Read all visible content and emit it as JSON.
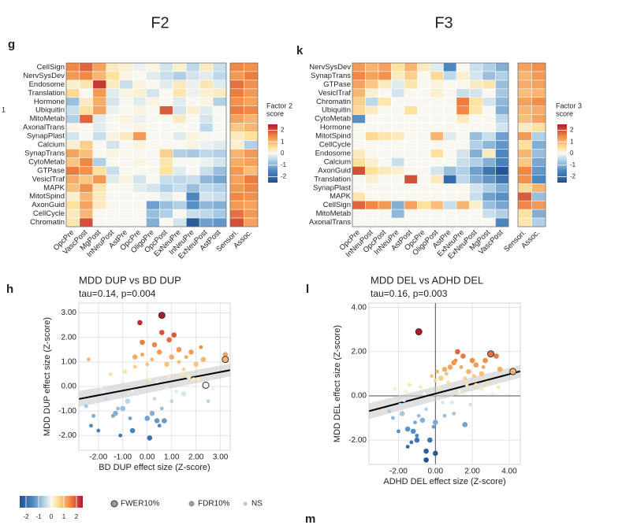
{
  "margin_text": "1",
  "next_panel": "m",
  "legend": {
    "colorbar_ticks": [
      -2,
      -1,
      0,
      1,
      2
    ],
    "clim": [
      -2.5,
      2.5
    ],
    "entries": [
      "FWER10%",
      "FDR10%",
      "NS"
    ]
  },
  "chart_data": [
    {
      "type": "heatmap",
      "header": "F2",
      "panel": "g",
      "clim": [
        -2.5,
        2.5
      ],
      "colorbar_title": [
        "Factor 2",
        "score"
      ],
      "colorbar_ticks": [
        -2,
        -1,
        0,
        1,
        2
      ],
      "rows": [
        "CellSign",
        "NervSysDev",
        "Endosome",
        "Translation",
        "Hormone",
        "Ubiquitin",
        "MitoMetab",
        "AxonalTrans",
        "SynapPlast",
        "Calcium",
        "SynapTrans",
        "CytoMetab",
        "GTPase",
        "VesiclTraf",
        "MAPK",
        "MitotSpind",
        "AxonGuid",
        "CellCycle",
        "Chromatin"
      ],
      "columns": [
        "OpcPre",
        "VascPost",
        "MgPost",
        "InNeuPost",
        "AstPre",
        "OpcPre",
        "OligoPre",
        "OpcPost",
        "ExNeuPre",
        "InNeuPre",
        "ExNeuPost",
        "AstPost"
      ],
      "side_columns": [
        "Sensori.",
        "Assoc."
      ],
      "values": [
        [
          1.5,
          1.8,
          1.2,
          0.3,
          0.2,
          -0.1,
          0.1,
          -0.3,
          0.2,
          -0.5,
          0.3,
          -0.4
        ],
        [
          1.3,
          1.5,
          1.0,
          0.5,
          0.1,
          0.0,
          -0.2,
          -0.4,
          -0.6,
          -0.3,
          -0.2,
          -0.5
        ],
        [
          0.2,
          0.4,
          2.2,
          0.3,
          -0.4,
          0.1,
          0.0,
          -0.2,
          0.3,
          -0.1,
          0.4,
          -0.2
        ],
        [
          0.6,
          0.0,
          1.3,
          -0.2,
          0.1,
          0.2,
          -0.3,
          0.0,
          0.4,
          -0.1,
          0.2,
          0.3
        ],
        [
          -0.8,
          0.3,
          1.1,
          -0.3,
          0.0,
          -0.2,
          0.1,
          0.0,
          -0.2,
          0.0,
          0.1,
          -0.6
        ],
        [
          -0.4,
          0.5,
          1.2,
          -0.1,
          0.0,
          0.1,
          0.0,
          1.9,
          -0.3,
          0.2,
          -0.2,
          0.0
        ],
        [
          -0.6,
          1.8,
          -0.2,
          0.0,
          0.1,
          -0.1,
          0.0,
          0.0,
          0.3,
          0.0,
          -0.3,
          0.0
        ],
        [
          0.1,
          0.0,
          -0.2,
          0.0,
          0.0,
          0.1,
          0.0,
          0.0,
          0.0,
          0.0,
          -0.5,
          0.0
        ],
        [
          -0.3,
          0.0,
          -0.4,
          0.1,
          0.3,
          1.3,
          0.0,
          0.0,
          -0.2,
          0.1,
          0.0,
          0.0
        ],
        [
          0.2,
          0.7,
          0.0,
          -0.3,
          0.0,
          0.1,
          0.0,
          0.0,
          0.0,
          0.1,
          -0.1,
          -0.2
        ],
        [
          1.2,
          0.9,
          0.0,
          0.1,
          0.0,
          0.0,
          0.0,
          0.7,
          -0.6,
          -0.7,
          -0.5,
          -0.6
        ],
        [
          0.8,
          1.5,
          -0.6,
          0.0,
          0.0,
          0.1,
          0.0,
          0.4,
          0.0,
          0.0,
          -0.1,
          -0.3
        ],
        [
          1.6,
          1.4,
          0.5,
          -0.4,
          0.0,
          0.0,
          0.0,
          0.5,
          -0.2,
          0.0,
          -0.4,
          -0.8
        ],
        [
          1.1,
          0.8,
          1.3,
          -0.2,
          0.1,
          -0.3,
          0.0,
          -0.4,
          -0.5,
          -0.4,
          -0.9,
          -1.1
        ],
        [
          0.9,
          1.4,
          0.4,
          0.0,
          0.0,
          -0.2,
          -0.3,
          -0.6,
          -0.4,
          -0.8,
          -0.5,
          -0.6
        ],
        [
          0.2,
          1.0,
          0.3,
          0.0,
          0.0,
          0.0,
          0.0,
          -0.2,
          0.0,
          -1.5,
          -0.3,
          -0.4
        ],
        [
          0.5,
          1.2,
          0.3,
          0.0,
          0.0,
          0.0,
          -1.2,
          -0.8,
          -0.6,
          -1.4,
          -0.9,
          -1.0
        ],
        [
          0.3,
          1.0,
          0.0,
          0.0,
          0.0,
          0.0,
          -0.8,
          -0.6,
          0.0,
          -0.4,
          -0.5,
          -0.7
        ],
        [
          0.4,
          2.0,
          0.0,
          0.0,
          0.0,
          0.0,
          -1.0,
          0.0,
          -0.3,
          -2.3,
          -1.2,
          -1.3
        ]
      ],
      "side_values": [
        [
          1.5,
          1.4
        ],
        [
          1.3,
          1.6
        ],
        [
          1.7,
          1.4
        ],
        [
          1.6,
          1.3
        ],
        [
          1.4,
          1.2
        ],
        [
          1.6,
          1.5
        ],
        [
          1.2,
          1.0
        ],
        [
          0.8,
          1.0
        ],
        [
          0.3,
          0.5
        ],
        [
          0.2,
          -0.6
        ],
        [
          1.0,
          1.3
        ],
        [
          1.1,
          1.2
        ],
        [
          1.3,
          0.9
        ],
        [
          1.2,
          1.6
        ],
        [
          1.3,
          1.5
        ],
        [
          1.5,
          1.4
        ],
        [
          1.3,
          1.2
        ],
        [
          1.7,
          1.3
        ],
        [
          2.0,
          1.2
        ]
      ]
    },
    {
      "type": "heatmap",
      "header": "F3",
      "panel": "k",
      "clim": [
        -2.5,
        2.5
      ],
      "colorbar_title": [
        "Factor 3",
        "score"
      ],
      "colorbar_ticks": [
        -2,
        -1,
        0,
        1,
        2
      ],
      "rows": [
        "NervSysDev",
        "SynapTrans",
        "GTPase",
        "VesiclTraf",
        "Chromatin",
        "Ubiquitin",
        "CytoMetab",
        "Hormone",
        "MitotSpind",
        "CellCycle",
        "Endosome",
        "Calcium",
        "AxonGuid",
        "Translation",
        "SynapPlast",
        "MAPK",
        "CellSign",
        "MitoMetab",
        "AxonalTrans"
      ],
      "columns": [
        "OpcPre",
        "InNeuPost",
        "OpcPost",
        "InNeuPre",
        "AstPost",
        "OpcPre",
        "OligoPost",
        "AstPre",
        "ExNeuPre",
        "ExNeuPost",
        "MgPost",
        "VascPost"
      ],
      "side_columns": [
        "Sensori.",
        "Assoc."
      ],
      "values": [
        [
          1.3,
          1.0,
          1.2,
          0.5,
          1.0,
          0.3,
          -0.2,
          -1.5,
          0.0,
          -0.4,
          -0.6,
          -1.0
        ],
        [
          1.5,
          1.2,
          1.4,
          0.3,
          0.7,
          0.0,
          0.6,
          -0.5,
          0.2,
          -0.3,
          -0.8,
          -0.6
        ],
        [
          1.2,
          0.8,
          0.3,
          -0.2,
          0.4,
          0.0,
          0.1,
          0.0,
          0.0,
          0.3,
          0.4,
          -0.8
        ],
        [
          1.0,
          0.2,
          0.0,
          -0.3,
          0.0,
          0.0,
          0.2,
          0.0,
          -0.4,
          -0.3,
          0.0,
          -0.7
        ],
        [
          0.7,
          -0.5,
          0.4,
          0.0,
          0.0,
          0.0,
          0.0,
          0.0,
          1.6,
          0.5,
          -0.3,
          -0.9
        ],
        [
          0.6,
          0.3,
          0.0,
          0.0,
          0.5,
          0.0,
          0.0,
          0.0,
          1.5,
          0.4,
          0.0,
          -1.0
        ],
        [
          -1.4,
          0.0,
          0.0,
          0.0,
          0.0,
          0.0,
          0.0,
          0.0,
          0.3,
          0.0,
          0.0,
          -0.5
        ],
        [
          0.0,
          0.0,
          0.0,
          0.0,
          0.0,
          0.0,
          0.0,
          0.0,
          0.0,
          0.0,
          0.0,
          -0.3
        ],
        [
          0.0,
          0.6,
          0.4,
          0.3,
          0.0,
          0.0,
          1.0,
          -0.2,
          0.0,
          -0.8,
          -0.4,
          -1.2
        ],
        [
          0.0,
          0.0,
          0.0,
          0.0,
          0.0,
          0.0,
          0.0,
          0.0,
          0.0,
          -0.6,
          -0.9,
          -1.3
        ],
        [
          0.3,
          0.0,
          0.0,
          0.0,
          0.0,
          0.0,
          0.5,
          0.0,
          -0.3,
          -1.0,
          0.3,
          -1.5
        ],
        [
          0.5,
          0.2,
          0.0,
          -0.4,
          0.0,
          0.0,
          0.0,
          0.0,
          -0.4,
          -0.6,
          -1.0,
          -1.6
        ],
        [
          2.0,
          0.5,
          0.3,
          0.2,
          0.0,
          0.0,
          -0.3,
          -0.8,
          -0.6,
          -1.2,
          -1.8,
          -2.4
        ],
        [
          0.0,
          0.2,
          0.0,
          0.0,
          2.0,
          0.0,
          0.3,
          -2.0,
          -0.5,
          -1.0,
          -1.3,
          -1.8
        ],
        [
          0.0,
          0.0,
          0.0,
          0.0,
          0.0,
          0.0,
          0.0,
          0.0,
          0.0,
          -0.3,
          -0.6,
          -1.0
        ],
        [
          0.4,
          0.0,
          0.0,
          0.0,
          0.0,
          0.0,
          0.0,
          0.0,
          0.0,
          -0.4,
          -1.2,
          -1.4
        ],
        [
          1.8,
          1.5,
          1.3,
          -1.0,
          1.2,
          0.5,
          0.9,
          -0.4,
          1.0,
          0.2,
          -0.8,
          -1.1
        ],
        [
          0.0,
          0.0,
          0.0,
          -0.9,
          0.0,
          0.0,
          0.0,
          0.0,
          0.0,
          0.0,
          -0.4,
          -0.6
        ],
        [
          0.0,
          0.0,
          0.0,
          0.0,
          0.0,
          0.0,
          0.0,
          0.0,
          0.0,
          0.0,
          0.0,
          -1.5
        ]
      ],
      "side_values": [
        [
          1.2,
          1.4
        ],
        [
          1.0,
          1.3
        ],
        [
          1.1,
          1.2
        ],
        [
          0.9,
          1.0
        ],
        [
          1.2,
          1.4
        ],
        [
          1.0,
          1.1
        ],
        [
          0.9,
          1.2
        ],
        [
          0.3,
          0.5
        ],
        [
          1.3,
          -0.6
        ],
        [
          0.5,
          -1.0
        ],
        [
          1.0,
          -0.8
        ],
        [
          0.8,
          -1.1
        ],
        [
          1.5,
          -1.3
        ],
        [
          1.4,
          -1.5
        ],
        [
          0.6,
          1.0
        ],
        [
          1.9,
          -0.8
        ],
        [
          1.5,
          1.3
        ],
        [
          0.5,
          -1.0
        ],
        [
          0.4,
          -0.6
        ]
      ]
    },
    {
      "type": "scatter",
      "panel": "h",
      "title": "MDD DUP vs BD DUP",
      "subtitle": "tau=0.14, p=0.004",
      "xlabel": "BD DUP effect size (Z-score)",
      "ylabel": "MDD DUP effect size (Z-score)",
      "xlim": [
        -2.8,
        3.4
      ],
      "ylim": [
        -2.6,
        3.4
      ],
      "grid": true,
      "zero_lines": false,
      "xticks": [
        {
          "value": -2,
          "label": "-2.00"
        },
        {
          "value": -1,
          "label": "-1.00"
        },
        {
          "value": 0,
          "label": "0.00"
        },
        {
          "value": 1,
          "label": "1.00"
        },
        {
          "value": 2,
          "label": "2.00"
        },
        {
          "value": 3,
          "label": "3.00"
        }
      ],
      "yticks": [
        {
          "value": -2,
          "label": "-2.00"
        },
        {
          "value": -1,
          "label": "-1.00"
        },
        {
          "value": 0,
          "label": "0.00"
        },
        {
          "value": 1,
          "label": "1.00"
        },
        {
          "value": 2,
          "label": "2.00"
        },
        {
          "value": 3,
          "label": "3.00"
        }
      ],
      "fit": {
        "intercept": 0.02,
        "slope": 0.19
      },
      "series": [
        {
          "x": [
            0.6,
            2.4,
            3.2
          ],
          "y": [
            2.9,
            0.05,
            1.1
          ]
        },
        {
          "x": [
            -0.2,
            0.3,
            0.6,
            1.0,
            1.3,
            -0.5,
            0.8,
            1.8,
            2.3,
            -1.0,
            0.0,
            0.4,
            1.5,
            -0.8,
            0.2,
            0.9,
            1.1,
            -0.3,
            0.5,
            1.7,
            -1.3,
            -0.6,
            0.1,
            0.7,
            2.0,
            3.2
          ],
          "y": [
            1.8,
            1.7,
            2.2,
            1.2,
            1.5,
            1.2,
            0.9,
            1.4,
            1.1,
            -0.9,
            -1.3,
            -1.4,
            -0.3,
            -0.6,
            -1.1,
            1.9,
            2.1,
            2.6,
            1.4,
            0.4,
            -1.1,
            -1.8,
            -2.1,
            -1.4,
            0.9,
            1.3
          ]
        },
        {
          "x": [
            -2.5,
            -2.3,
            -2.0,
            -1.8,
            -1.5,
            -1.2,
            -1.0,
            -0.7,
            -0.5,
            -0.2,
            0.1,
            0.3,
            0.6,
            0.9,
            1.2,
            1.5,
            1.8,
            2.1,
            2.5,
            -2.4,
            -1.7,
            -1.4,
            -0.9,
            -0.4,
            0.0,
            0.4,
            0.8,
            1.3,
            1.9,
            2.7,
            -1.1,
            -0.6,
            0.2,
            1.0,
            1.6,
            -2.2,
            -1.9,
            0.5,
            1.4,
            2.2
          ],
          "y": [
            -0.8,
            -1.6,
            -1.8,
            -0.2,
            0.5,
            -0.9,
            0.2,
            -1.3,
            0.8,
            1.3,
            0.3,
            -0.5,
            -0.9,
            0.4,
            -0.2,
            0.7,
            0.0,
            0.3,
            -0.6,
            1.1,
            -0.5,
            -1.2,
            0.6,
            -0.3,
            0.9,
            0.2,
            -0.1,
            1.0,
            0.3,
            -0.1,
            -2.0,
            -0.2,
            1.1,
            -0.6,
            1.2,
            -1.2,
            0.0,
            -1.6,
            0.5,
            1.6
          ]
        }
      ]
    },
    {
      "type": "scatter",
      "panel": "l",
      "title": "MDD DEL vs ADHD DEL",
      "subtitle": "tau=0.16, p=0.003",
      "xlabel": "ADHD DEL effect size (Z-score)",
      "ylabel": "MDD DEL effect size (Z-score)",
      "xlim": [
        -3.6,
        4.6
      ],
      "ylim": [
        -3.1,
        4.2
      ],
      "grid": true,
      "zero_lines": true,
      "xticks": [
        {
          "value": -2,
          "label": "-2.00"
        },
        {
          "value": 0,
          "label": "0.00"
        },
        {
          "value": 2,
          "label": "2.00"
        },
        {
          "value": 4,
          "label": "4.00"
        }
      ],
      "yticks": [
        {
          "value": -2,
          "label": "-2.00"
        },
        {
          "value": 0,
          "label": "0.00"
        },
        {
          "value": 2,
          "label": "2.00"
        },
        {
          "value": 4,
          "label": "4.00"
        }
      ],
      "fit": {
        "intercept": 0.1,
        "slope": 0.22
      },
      "series": [
        {
          "x": [
            -0.9,
            3.0,
            4.2
          ],
          "y": [
            2.9,
            1.9,
            1.1
          ]
        },
        {
          "x": [
            -1.5,
            -1.0,
            -0.5,
            0.0,
            0.5,
            1.0,
            1.5,
            2.0,
            2.5,
            3.3,
            3.5,
            -1.8,
            -1.2,
            -0.7,
            -0.3,
            0.3,
            0.8,
            1.2,
            1.8,
            2.2,
            2.7,
            -0.5,
            0.0,
            1.6
          ],
          "y": [
            -1.5,
            -2.0,
            -2.5,
            -1.2,
            1.2,
            1.5,
            1.8,
            1.6,
            1.0,
            1.8,
            1.2,
            -0.8,
            -1.6,
            -1.1,
            -2.0,
            0.8,
            1.3,
            2.0,
            1.1,
            1.4,
            1.6,
            -2.9,
            -2.6,
            -1.3
          ]
        },
        {
          "x": [
            -2.5,
            -2.2,
            -2.0,
            -1.7,
            -1.4,
            -1.1,
            -0.8,
            -0.5,
            -0.2,
            0.1,
            0.4,
            0.7,
            1.0,
            1.3,
            1.6,
            1.9,
            2.2,
            2.5,
            2.8,
            3.1,
            -2.3,
            -1.9,
            -1.6,
            -1.3,
            -0.9,
            -0.6,
            -0.1,
            0.2,
            0.6,
            0.9,
            1.4,
            1.7,
            2.1,
            2.6,
            3.4,
            -1.5,
            -1.0,
            0.0,
            0.5,
            1.1
          ],
          "y": [
            -0.7,
            0.3,
            -1.6,
            -0.2,
            0.5,
            -1.2,
            0.4,
            -0.6,
            0.9,
            1.1,
            -0.3,
            0.6,
            -0.8,
            0.2,
            0.8,
            -0.4,
            0.5,
            0.3,
            0.6,
            0.1,
            -1.0,
            -0.4,
            0.2,
            -2.1,
            -0.9,
            0.1,
            -1.4,
            0.4,
            1.0,
            -0.3,
            1.3,
            0.5,
            0.9,
            1.3,
            0.4,
            -2.3,
            -1.8,
            0.7,
            -0.9,
            1.6
          ]
        }
      ]
    }
  ]
}
